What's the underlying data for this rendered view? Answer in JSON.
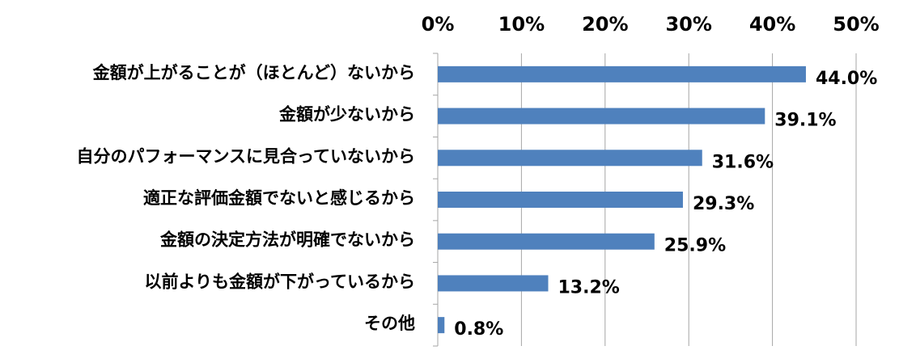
{
  "chart_data": {
    "type": "bar",
    "orientation": "horizontal",
    "categories": [
      "金額が上がることが（ほとんど）ないから",
      "金額が少ないから",
      "自分のパフォーマンスに見合っていないから",
      "適正な評価金額でないと感じるから",
      "金額の決定方法が明確でないから",
      "以前よりも金額が下がっているから",
      "その他"
    ],
    "values": [
      44.0,
      39.1,
      31.6,
      29.3,
      25.9,
      13.2,
      0.8
    ],
    "value_labels": [
      "44.0%",
      "39.1%",
      "31.6%",
      "29.3%",
      "25.9%",
      "13.2%",
      "0.8%"
    ],
    "xlim": [
      0,
      50
    ],
    "x_ticks": [
      0,
      10,
      20,
      30,
      40,
      50
    ],
    "x_tick_labels": [
      "0%",
      "10%",
      "20%",
      "30%",
      "40%",
      "50%"
    ],
    "x_axis_position": "top",
    "grid": true,
    "bar_color": "#4f81bd",
    "grid_color": "#a6a6a6"
  }
}
